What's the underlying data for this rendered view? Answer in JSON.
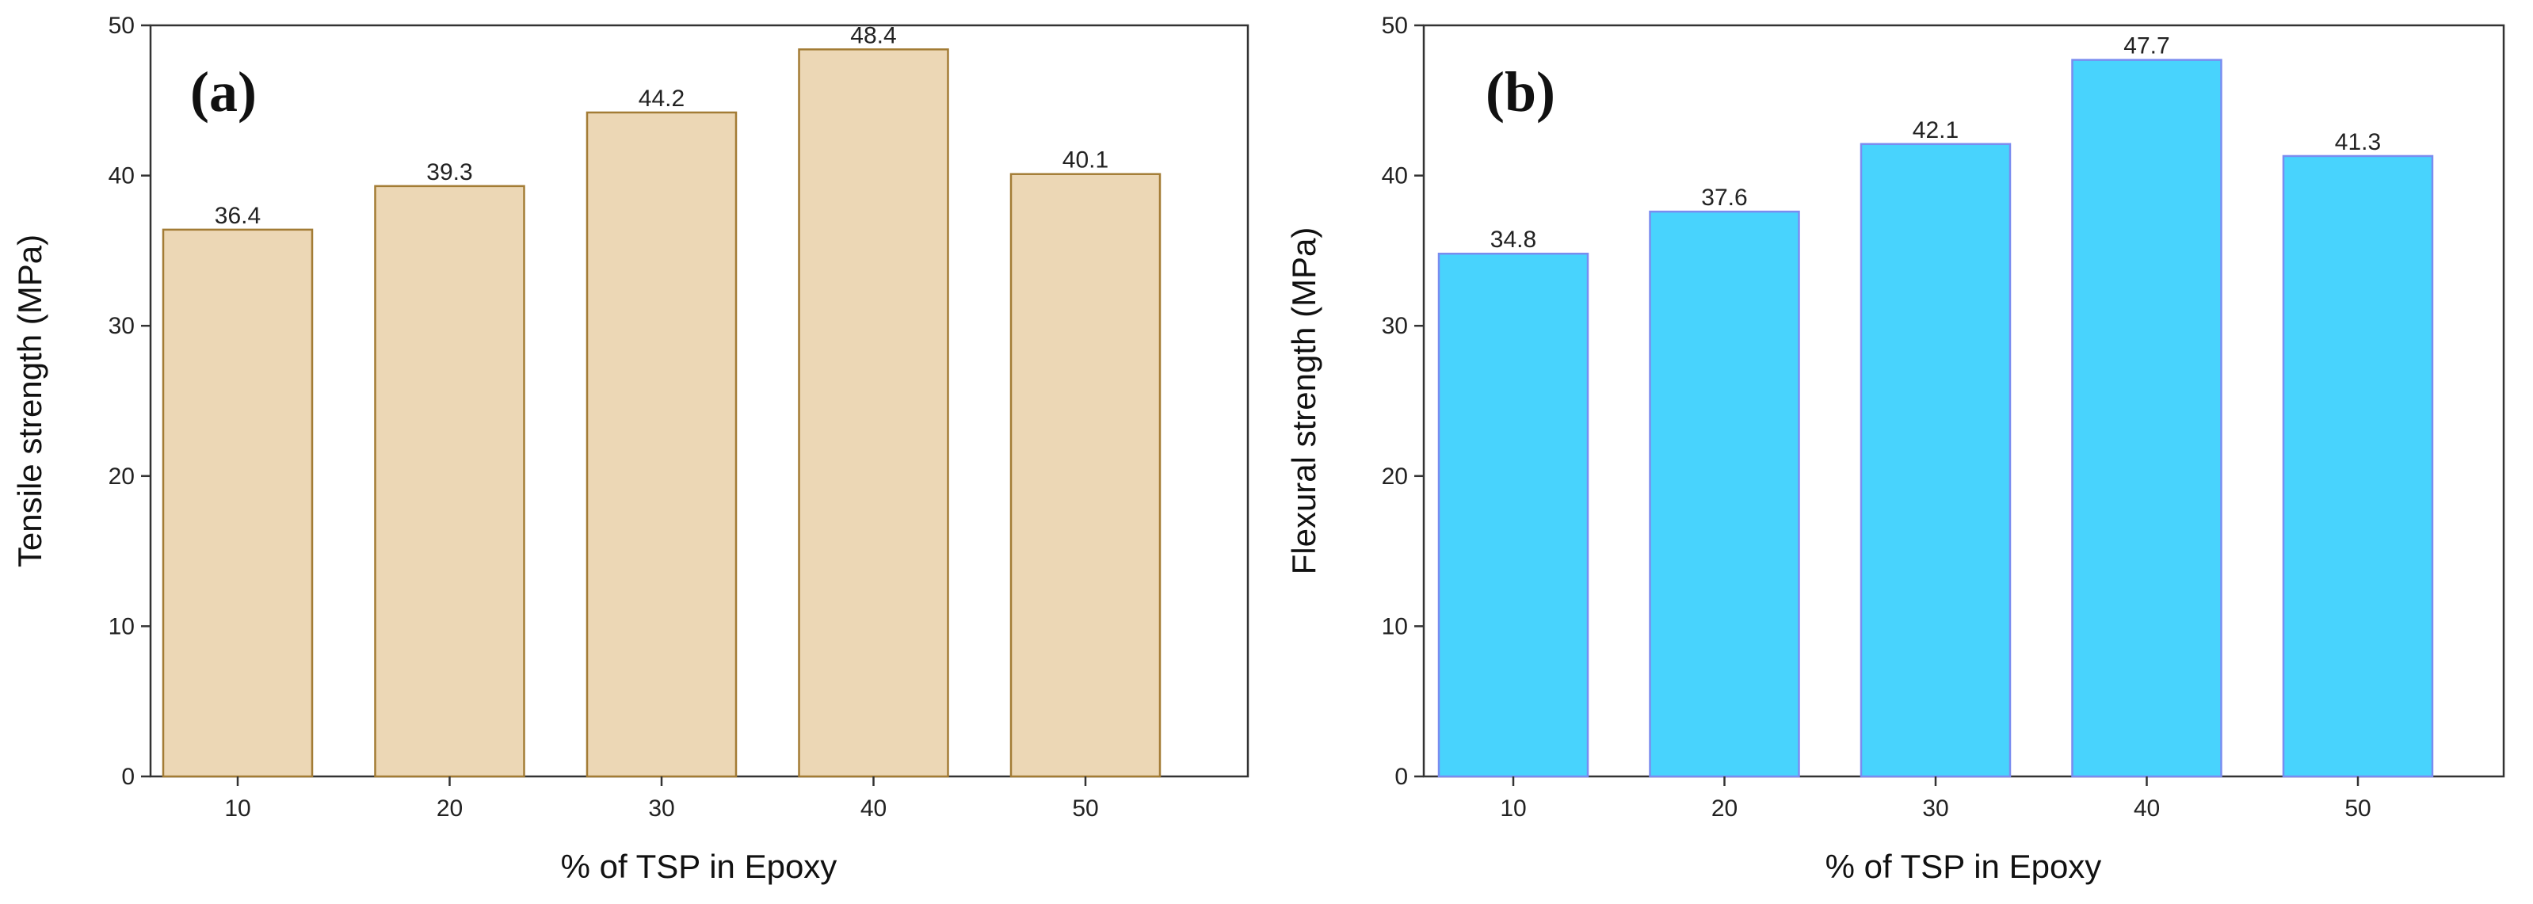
{
  "chart_data": [
    {
      "type": "bar",
      "panel_label": "(a)",
      "title": "",
      "xlabel": "% of TSP in Epoxy",
      "ylabel": "Tensile strength (MPa)",
      "categories": [
        "10",
        "20",
        "30",
        "40",
        "50"
      ],
      "values": [
        36.4,
        39.3,
        44.2,
        48.4,
        40.1
      ],
      "value_labels": [
        "36.4",
        "39.3",
        "44.2",
        "48.4",
        "40.1"
      ],
      "ylim": [
        0,
        50
      ],
      "yticks": [
        "0",
        "10",
        "20",
        "30",
        "40",
        "50"
      ],
      "grid": false,
      "colors": {
        "fill": "#ecd7b5",
        "stroke": "#a37c35"
      }
    },
    {
      "type": "bar",
      "panel_label": "(b)",
      "title": "",
      "xlabel": "% of TSP in Epoxy",
      "ylabel": "Flexural strength (MPa)",
      "categories": [
        "10",
        "20",
        "30",
        "40",
        "50"
      ],
      "values": [
        34.8,
        37.6,
        42.1,
        47.7,
        41.3
      ],
      "value_labels": [
        "34.8",
        "37.6",
        "42.1",
        "47.7",
        "41.3"
      ],
      "ylim": [
        0,
        50
      ],
      "yticks": [
        "0",
        "10",
        "20",
        "30",
        "40",
        "50"
      ],
      "grid": false,
      "colors": {
        "fill": "#48d3fd",
        "stroke": "#7a8cf0"
      }
    }
  ]
}
